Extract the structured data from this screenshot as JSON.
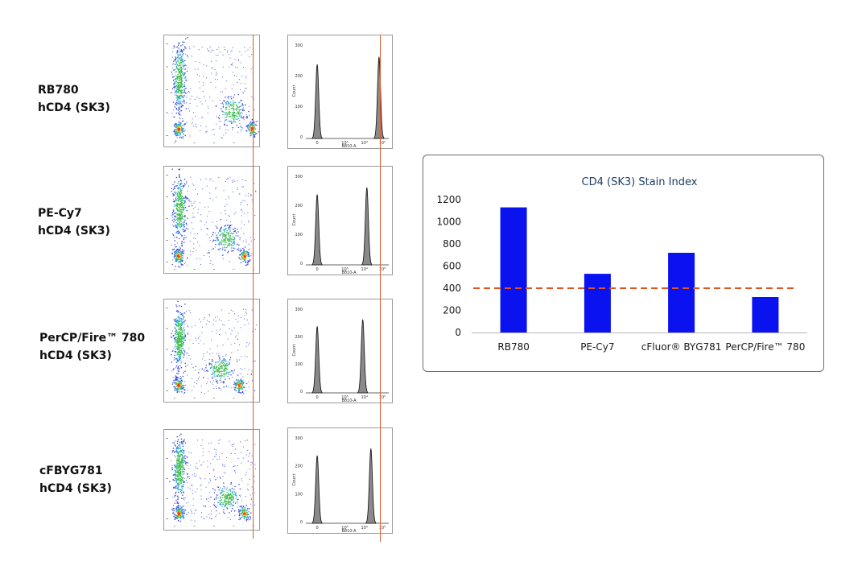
{
  "rows": [
    {
      "line1": "RB780",
      "line2": "hCD4 (SK3)",
      "hist_xlabel": "B810-A",
      "hist_ylabel": "Count",
      "hist_ticks": [
        "300",
        "200",
        "100",
        "0"
      ],
      "hist_xticks": [
        "0",
        "10³",
        "10⁴",
        "10⁵"
      ]
    },
    {
      "line1": "PE-Cy7",
      "line2": "hCD4 (SK3)",
      "hist_xlabel": "B810-A",
      "hist_ylabel": "Count",
      "hist_ticks": [
        "300",
        "200",
        "100",
        "0"
      ],
      "hist_xticks": [
        "0",
        "10³",
        "10⁴",
        "10⁵"
      ]
    },
    {
      "line1": "PerCP/Fire™ 780",
      "line2": "hCD4 (SK3)",
      "hist_xlabel": "B810-A",
      "hist_ylabel": "Count",
      "hist_ticks": [
        "300",
        "200",
        "100",
        "0"
      ],
      "hist_xticks": [
        "0",
        "10³",
        "10⁴",
        "10⁵"
      ]
    },
    {
      "line1": "cFBYG781",
      "line2": "hCD4 (SK3)",
      "hist_xlabel": "B810-A",
      "hist_ylabel": "Count",
      "hist_ticks": [
        "300",
        "200",
        "100",
        "0"
      ],
      "hist_xticks": [
        "0",
        "10³",
        "10⁴",
        "10⁵"
      ]
    }
  ],
  "chart_data": {
    "type": "bar",
    "title": "CD4 (SK3) Stain Index",
    "categories": [
      "RB780",
      "PE-Cy7",
      "cFluor® BYG781",
      "PerCP/Fire™ 780"
    ],
    "values": [
      1130,
      530,
      720,
      320
    ],
    "ylim": [
      0,
      1200
    ],
    "yticks": [
      0,
      200,
      400,
      600,
      800,
      1000,
      1200
    ],
    "threshold": 400,
    "grid": false,
    "colors": {
      "bar": "#0a12f0",
      "threshold": "#e0541e",
      "axis": "#b5b5b5"
    }
  },
  "colors": {
    "gate_line": "#e05a25",
    "histogram_fill": "#8a8a8a",
    "panel_border": "#9a9a9a"
  }
}
